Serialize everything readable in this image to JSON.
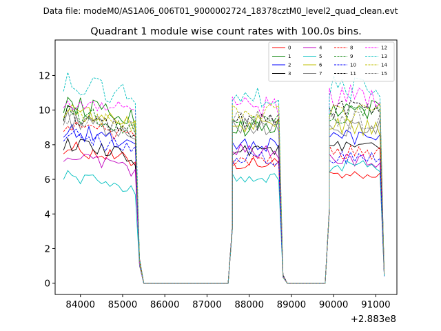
{
  "chart_data": {
    "type": "line",
    "suptitle": "Data file: modeM0/AS1A06_006T01_9000002724_18378cztM0_level2_quad_clean.evt",
    "title": "Quadrant 1 module wise count rates with 100.0s bins.",
    "xlabel": "",
    "ylabel": "",
    "x_offset_label": "+2.883e8",
    "xlim": [
      83400,
      91500
    ],
    "ylim": [
      -0.65,
      14.05
    ],
    "xticks": [
      84000,
      85000,
      86000,
      87000,
      88000,
      89000,
      90000,
      91000
    ],
    "yticks": [
      0,
      2,
      4,
      6,
      8,
      10,
      12
    ],
    "xtick_labels": [
      "84000",
      "85000",
      "86000",
      "87000",
      "88000",
      "89000",
      "90000",
      "91000"
    ],
    "ytick_labels": [
      "0",
      "2",
      "4",
      "6",
      "8",
      "10",
      "12"
    ],
    "legend_position": "top-right",
    "segments": [
      {
        "start": 83600,
        "end": 85300,
        "tail": [
          [
            85400,
            1.2
          ],
          [
            85500,
            0
          ]
        ]
      },
      {
        "start": 87600,
        "end": 88700,
        "head": [
          [
            87500,
            0
          ],
          [
            87600,
            3.5
          ]
        ],
        "tail": [
          [
            88800,
            0.4
          ],
          [
            88900,
            0
          ]
        ]
      },
      {
        "start": 89900,
        "end": 91100,
        "head": [
          [
            89800,
            0
          ],
          [
            89900,
            4.5
          ]
        ],
        "tail": [
          [
            91200,
            0.5
          ]
        ]
      }
    ],
    "zero_spans": [
      [
        85500,
        87500
      ],
      [
        88900,
        89800
      ]
    ],
    "series": [
      {
        "name": "0",
        "color": "#ff0000",
        "dash": "solid",
        "levels": [
          7.3,
          6.9,
          6.1
        ]
      },
      {
        "name": "1",
        "color": "#008000",
        "dash": "solid",
        "levels": [
          9.8,
          9.0,
          10.0
        ]
      },
      {
        "name": "2",
        "color": "#0000ff",
        "dash": "solid",
        "levels": [
          8.3,
          8.0,
          8.5
        ]
      },
      {
        "name": "3",
        "color": "#000000",
        "dash": "solid",
        "levels": [
          7.5,
          7.8,
          7.8
        ]
      },
      {
        "name": "4",
        "color": "#bf00bf",
        "dash": "solid",
        "levels": [
          6.8,
          7.6,
          7.1
        ]
      },
      {
        "name": "5",
        "color": "#00bfbf",
        "dash": "solid",
        "levels": [
          5.7,
          6.0,
          6.7
        ]
      },
      {
        "name": "6",
        "color": "#bfbf00",
        "dash": "solid",
        "levels": [
          9.5,
          9.2,
          9.0
        ]
      },
      {
        "name": "7",
        "color": "#808080",
        "dash": "solid",
        "levels": [
          9.0,
          9.1,
          9.0
        ]
      },
      {
        "name": "8",
        "color": "#ff0000",
        "dash": "dashed",
        "levels": [
          8.6,
          7.0,
          7.6
        ]
      },
      {
        "name": "9",
        "color": "#008000",
        "dash": "dashed",
        "levels": [
          9.3,
          9.3,
          9.8
        ]
      },
      {
        "name": "10",
        "color": "#0000ff",
        "dash": "dashed",
        "levels": [
          8.0,
          7.2,
          7.2
        ]
      },
      {
        "name": "11",
        "color": "#000000",
        "dash": "dashed",
        "levels": [
          9.2,
          9.3,
          10.0
        ]
      },
      {
        "name": "12",
        "color": "#ff00ff",
        "dash": "dashed",
        "levels": [
          10.0,
          10.2,
          10.8
        ]
      },
      {
        "name": "13",
        "color": "#00bfbf",
        "dash": "dashed",
        "levels": [
          11.0,
          10.7,
          11.3
        ]
      },
      {
        "name": "14",
        "color": "#bfbf00",
        "dash": "dashed",
        "levels": [
          9.4,
          9.9,
          9.8
        ]
      },
      {
        "name": "15",
        "color": "#808080",
        "dash": "dashed",
        "levels": [
          9.2,
          9.6,
          9.4
        ]
      }
    ]
  }
}
